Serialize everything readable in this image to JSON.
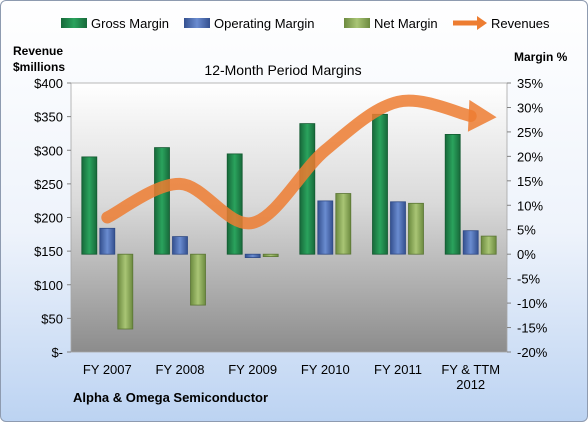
{
  "chart_data": {
    "type": "bar",
    "title": "12-Month Period Margins",
    "left_axis_title": [
      "Revenue",
      "$millions"
    ],
    "right_axis_title": "Margin %",
    "categories": [
      [
        "FY 2007"
      ],
      [
        "FY 2008"
      ],
      [
        "FY 2009"
      ],
      [
        "FY 2010"
      ],
      [
        "FY 2011"
      ],
      [
        "FY & TTM",
        "2012"
      ]
    ],
    "left_axis": {
      "ylim": [
        0,
        400
      ],
      "ticks": [
        0,
        50,
        100,
        150,
        200,
        250,
        300,
        350,
        400
      ],
      "tick_labels": [
        "$-",
        "$50",
        "$100",
        "$150",
        "$200",
        "$250",
        "$300",
        "$350",
        "$400"
      ]
    },
    "right_axis": {
      "ylim": [
        -20,
        35
      ],
      "ticks": [
        35,
        30,
        25,
        20,
        15,
        10,
        5,
        0,
        -5,
        -10,
        -15,
        -20
      ],
      "tick_labels": [
        "35%",
        "30%",
        "25%",
        "20%",
        "15%",
        "10%",
        "5%",
        "0%",
        "-5%",
        "-10%",
        "-15%",
        "-20%"
      ]
    },
    "series": [
      {
        "name": "Gross Margin",
        "axis": "right",
        "kind": "bar",
        "color": "#1f8a4c",
        "values": [
          19.9,
          21.8,
          20.5,
          26.7,
          28.6,
          24.5
        ]
      },
      {
        "name": "Operating Margin",
        "axis": "right",
        "kind": "bar",
        "color": "#4f6fb5",
        "values": [
          5.3,
          3.6,
          -0.7,
          10.9,
          10.7,
          4.8
        ]
      },
      {
        "name": "Net Margin",
        "axis": "right",
        "kind": "bar",
        "color": "#8cab5a",
        "values": [
          -15.3,
          -10.4,
          -0.5,
          12.4,
          10.4,
          3.7
        ]
      },
      {
        "name": "Revenues",
        "axis": "left",
        "kind": "line",
        "color": "#ed7d31",
        "values": [
          200,
          250,
          192,
          300,
          372,
          351
        ]
      }
    ],
    "legend_position": "top",
    "grid": false
  },
  "footer": "Alpha & Omega Semiconductor"
}
